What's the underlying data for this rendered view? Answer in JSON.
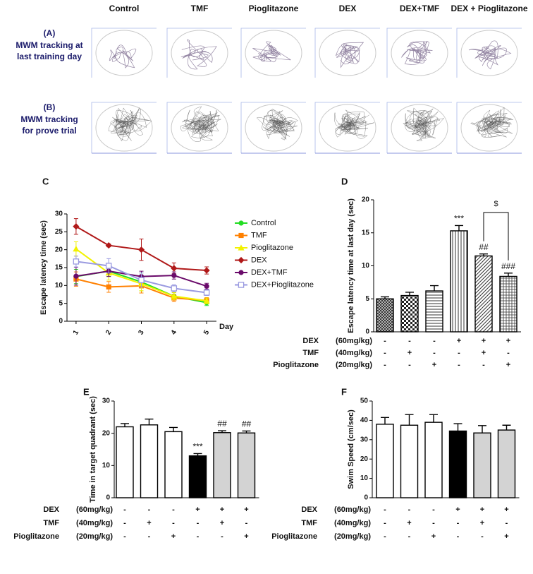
{
  "header": {
    "columns": [
      "Control",
      "TMF",
      "Pioglitazone",
      "DEX",
      "DEX+TMF",
      "DEX + Pioglitazone"
    ]
  },
  "rows": [
    {
      "letter": "(A)",
      "lines": [
        "MWM tracking at",
        "last training day"
      ]
    },
    {
      "letter": "(B)",
      "lines": [
        "MWM tracking",
        "for prove trial"
      ]
    }
  ],
  "chart_data": [
    {
      "type": "line",
      "label": "C",
      "ylabel": "Escape latency time (sec)",
      "xlabel": "Day",
      "x": [
        1,
        2,
        3,
        4,
        5
      ],
      "xlim": [
        0.7,
        5.3
      ],
      "xticks": [
        1,
        2,
        3,
        4,
        5
      ],
      "ylim": [
        0,
        30
      ],
      "yticks": [
        0,
        5,
        10,
        15,
        20,
        25,
        30
      ],
      "series": [
        {
          "name": "Control",
          "color": "#22dd22",
          "marker": "circle",
          "values": [
            12.5,
            14,
            11,
            7,
            5.2
          ],
          "errors": [
            2,
            1.5,
            2.5,
            1,
            0.8
          ]
        },
        {
          "name": "TMF",
          "color": "#ff8000",
          "marker": "square",
          "values": [
            11.8,
            9.6,
            9.9,
            6.5,
            5.8
          ],
          "errors": [
            2,
            1.5,
            2,
            1,
            0.8
          ]
        },
        {
          "name": "Pioglitazone",
          "color": "#f2f200",
          "marker": "triangle",
          "values": [
            20.2,
            13.5,
            10.5,
            7,
            5.7
          ],
          "errors": [
            2,
            2,
            2,
            1,
            0.8
          ]
        },
        {
          "name": "DEX",
          "color": "#b01818",
          "marker": "diamond",
          "values": [
            26.5,
            21.2,
            20,
            14.8,
            14.2
          ],
          "errors": [
            2.2,
            0.4,
            3,
            1.5,
            1
          ]
        },
        {
          "name": "DEX+TMF",
          "color": "#6a0a6a",
          "marker": "circle",
          "values": [
            12.6,
            14,
            12.5,
            12.8,
            9.8
          ],
          "errors": [
            2.5,
            1.5,
            1.5,
            1,
            0.8
          ]
        },
        {
          "name": "DEX+Pioglitazone",
          "color": "#9a9ae0",
          "marker": "open-square",
          "values": [
            16.7,
            15.5,
            11.5,
            9.2,
            8
          ],
          "errors": [
            1.5,
            2,
            2,
            1,
            0.8
          ]
        }
      ]
    },
    {
      "type": "bar",
      "label": "D",
      "ylabel": "Escape latency time at last day (sec)",
      "ylim": [
        0,
        20
      ],
      "yticks": [
        0,
        5,
        10,
        15,
        20
      ],
      "values": [
        5,
        5.5,
        6.2,
        15.3,
        11.5,
        8.4
      ],
      "errors": [
        0.3,
        0.5,
        0.8,
        0.8,
        0.3,
        0.5
      ],
      "patterns": [
        "crosshatch",
        "checker",
        "horizontal",
        "vertical",
        "diagonal",
        "grid"
      ],
      "annotations": [
        null,
        null,
        null,
        "***",
        "##",
        "###"
      ],
      "bracket_label": "$",
      "treatments": [
        {
          "name": "DEX",
          "dose": "(60mg/kg)",
          "signs": [
            "-",
            "-",
            "-",
            "+",
            "+",
            "+"
          ]
        },
        {
          "name": "TMF",
          "dose": "(40mg/kg)",
          "signs": [
            "-",
            "+",
            "-",
            "-",
            "+",
            "-"
          ]
        },
        {
          "name": "Pioglitazone",
          "dose": "(20mg/kg)",
          "signs": [
            "-",
            "-",
            "+",
            "-",
            "-",
            "+"
          ]
        }
      ]
    },
    {
      "type": "bar",
      "label": "E",
      "ylabel": "Time in target quadrant (sec)",
      "ylim": [
        0,
        30
      ],
      "yticks": [
        0,
        10,
        20,
        30
      ],
      "values": [
        22,
        22.6,
        20.5,
        13,
        20.2,
        20.1
      ],
      "errors": [
        1,
        1.8,
        1.3,
        0.7,
        0.6,
        0.6
      ],
      "colors": [
        "#ffffff",
        "#ffffff",
        "#ffffff",
        "#000000",
        "#d3d3d3",
        "#d3d3d3"
      ],
      "annotations": [
        null,
        null,
        null,
        "***",
        "##",
        "##"
      ],
      "treatments": [
        {
          "name": "DEX",
          "dose": "(60mg/kg)",
          "signs": [
            "-",
            "-",
            "-",
            "+",
            "+",
            "+"
          ]
        },
        {
          "name": "TMF",
          "dose": "(40mg/kg)",
          "signs": [
            "-",
            "+",
            "-",
            "-",
            "+",
            "-"
          ]
        },
        {
          "name": "Pioglitazone",
          "dose": "(20mg/kg)",
          "signs": [
            "-",
            "-",
            "+",
            "-",
            "-",
            "+"
          ]
        }
      ]
    },
    {
      "type": "bar",
      "label": "F",
      "ylabel": "Swim Speed (cm/sec)",
      "ylim": [
        0,
        50
      ],
      "yticks": [
        0,
        10,
        20,
        30,
        40,
        50
      ],
      "values": [
        38,
        37.5,
        39,
        34.5,
        33.5,
        35
      ],
      "errors": [
        3.5,
        5.5,
        4,
        3.8,
        3.8,
        2.5
      ],
      "colors": [
        "#ffffff",
        "#ffffff",
        "#ffffff",
        "#000000",
        "#d3d3d3",
        "#d3d3d3"
      ],
      "treatments": [
        {
          "name": "DEX",
          "dose": "(60mg/kg)",
          "signs": [
            "-",
            "-",
            "-",
            "+",
            "+",
            "+"
          ]
        },
        {
          "name": "TMF",
          "dose": "(40mg/kg)",
          "signs": [
            "-",
            "+",
            "-",
            "-",
            "+",
            "-"
          ]
        },
        {
          "name": "Pioglitazone",
          "dose": "(20mg/kg)",
          "signs": [
            "-",
            "-",
            "+",
            "-",
            "-",
            "+"
          ]
        }
      ]
    }
  ]
}
